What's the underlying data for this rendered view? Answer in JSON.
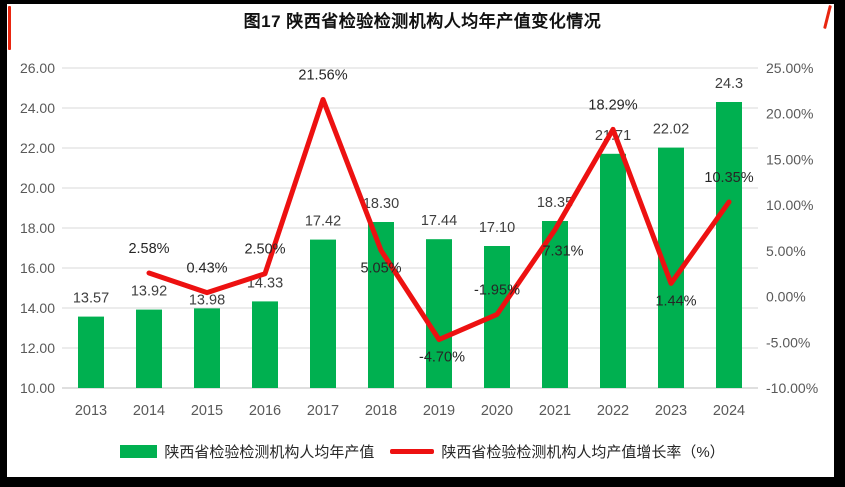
{
  "frame": {
    "border_color": "#000000",
    "corner_mark_color": "#e8250f"
  },
  "title": "图17 陕西省检验检测机构人均年产值变化情况",
  "legend": [
    {
      "label": "陕西省检验检测机构人均年产值",
      "type": "bar",
      "color": "#00B050"
    },
    {
      "label": "陕西省检验检测机构人均产值增长率（%）",
      "type": "line",
      "color": "#ED1111"
    }
  ],
  "chart_data": {
    "type": "bar",
    "subtype": "combo-bar-line",
    "title": "图17 陕西省检验检测机构人均年产值变化情况",
    "categories": [
      "2013",
      "2014",
      "2015",
      "2016",
      "2017",
      "2018",
      "2019",
      "2020",
      "2021",
      "2022",
      "2023",
      "2024"
    ],
    "series": [
      {
        "name": "陕西省检验检测机构人均年产值",
        "type": "bar",
        "axis": "left",
        "color": "#00B050",
        "values": [
          13.57,
          13.92,
          13.98,
          14.33,
          17.42,
          18.3,
          17.44,
          17.1,
          18.35,
          21.71,
          22.02,
          24.3
        ],
        "labels": [
          "13.57",
          "13.92",
          "13.98",
          "14.33",
          "17.42",
          "18.30",
          "17.44",
          "17.10",
          "18.35",
          "21.71",
          "22.02",
          "24.3"
        ]
      },
      {
        "name": "陕西省检验检测机构人均产值增长率（%）",
        "type": "line",
        "axis": "right",
        "color": "#ED1111",
        "values": [
          null,
          2.58,
          0.43,
          2.5,
          21.56,
          5.05,
          -4.7,
          -1.95,
          7.31,
          18.29,
          1.44,
          10.35
        ],
        "labels": [
          "",
          "2.58%",
          "0.43%",
          "2.50%",
          "21.56%",
          "5.05%",
          "-4.70%",
          "-1.95%",
          "7.31%",
          "18.29%",
          "1.44%",
          "10.35%"
        ]
      }
    ],
    "left_axis": {
      "min": 10,
      "max": 26,
      "step": 2,
      "ticks": [
        "26.00",
        "24.00",
        "22.00",
        "20.00",
        "18.00",
        "16.00",
        "14.00",
        "12.00",
        "10.00"
      ]
    },
    "right_axis": {
      "min": -10,
      "max": 25,
      "step": 5,
      "ticks": [
        "25.00%",
        "20.00%",
        "15.00%",
        "10.00%",
        "5.00%",
        "0.00%",
        "-5.00%",
        "-10.00%"
      ]
    },
    "grid": true,
    "legend_position": "bottom",
    "colors": {
      "gridline": "#d9d9d9",
      "axis_line": "#bfbfbf",
      "tick_label": "#595959",
      "data_label": "#3f3f3f"
    }
  }
}
